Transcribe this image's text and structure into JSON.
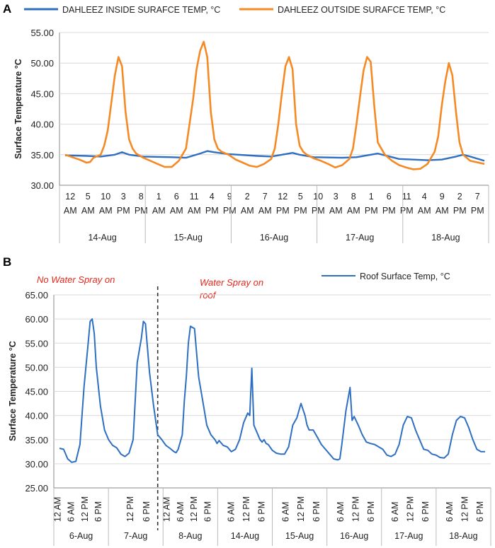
{
  "chart_data": [
    {
      "type": "line",
      "panel_label": "A",
      "ylabel": "Surface Temperature °C",
      "ylim": [
        30,
        55
      ],
      "yticks": [
        "30.00",
        "35.00",
        "40.00",
        "45.00",
        "50.00",
        "55.00"
      ],
      "x_time_labels": [
        {
          "top": "12",
          "bot": "AM"
        },
        {
          "top": "5",
          "bot": "AM"
        },
        {
          "top": "10",
          "bot": "AM"
        },
        {
          "top": "3",
          "bot": "PM"
        },
        {
          "top": "8",
          "bot": "PM"
        },
        {
          "top": "1",
          "bot": "AM"
        },
        {
          "top": "6",
          "bot": "AM"
        },
        {
          "top": "11",
          "bot": "AM"
        },
        {
          "top": "4",
          "bot": "PM"
        },
        {
          "top": "9",
          "bot": "PM"
        },
        {
          "top": "2",
          "bot": "AM"
        },
        {
          "top": "7",
          "bot": "AM"
        },
        {
          "top": "12",
          "bot": "PM"
        },
        {
          "top": "5",
          "bot": "PM"
        },
        {
          "top": "10",
          "bot": "PM"
        },
        {
          "top": "3",
          "bot": "AM"
        },
        {
          "top": "8",
          "bot": "AM"
        },
        {
          "top": "1",
          "bot": "PM"
        },
        {
          "top": "6",
          "bot": "PM"
        },
        {
          "top": "11",
          "bot": "PM"
        },
        {
          "top": "4",
          "bot": "AM"
        },
        {
          "top": "9",
          "bot": "AM"
        },
        {
          "top": "2",
          "bot": "PM"
        },
        {
          "top": "7",
          "bot": "PM"
        }
      ],
      "day_labels": [
        "14-Aug",
        "15-Aug",
        "16-Aug",
        "17-Aug",
        "18-Aug"
      ],
      "series": [
        {
          "name": "DAHLEEZ INSIDE SURAFCE TEMP, °C",
          "color": "#2e6fc2",
          "points": [
            [
              0,
              34.9
            ],
            [
              6,
              34.8
            ],
            [
              10,
              34.7
            ],
            [
              14,
              35.0
            ],
            [
              16,
              35.4
            ],
            [
              18,
              35.0
            ],
            [
              22,
              34.7
            ],
            [
              30,
              34.6
            ],
            [
              34,
              34.5
            ],
            [
              38,
              35.2
            ],
            [
              40,
              35.6
            ],
            [
              42,
              35.4
            ],
            [
              46,
              35.1
            ],
            [
              54,
              34.8
            ],
            [
              58,
              34.7
            ],
            [
              62,
              35.1
            ],
            [
              64,
              35.3
            ],
            [
              66,
              35.0
            ],
            [
              70,
              34.6
            ],
            [
              78,
              34.5
            ],
            [
              82,
              34.6
            ],
            [
              86,
              35.0
            ],
            [
              88,
              35.2
            ],
            [
              90,
              34.9
            ],
            [
              94,
              34.3
            ],
            [
              102,
              34.1
            ],
            [
              106,
              34.2
            ],
            [
              110,
              34.7
            ],
            [
              112,
              35.0
            ],
            [
              114,
              34.7
            ],
            [
              118,
              34.0
            ]
          ]
        },
        {
          "name": "DAHLEEZ OUTSIDE SURAFCE TEMP, °C",
          "color": "#f58a24",
          "points": [
            [
              0,
              35.0
            ],
            [
              2,
              34.6
            ],
            [
              4,
              34.2
            ],
            [
              6,
              33.7
            ],
            [
              7,
              33.8
            ],
            [
              8,
              34.5
            ],
            [
              10,
              35.0
            ],
            [
              11,
              36.5
            ],
            [
              12,
              39.0
            ],
            [
              13,
              43.5
            ],
            [
              14,
              48.0
            ],
            [
              15,
              51.0
            ],
            [
              16,
              49.5
            ],
            [
              17,
              42.0
            ],
            [
              18,
              37.5
            ],
            [
              19,
              36.0
            ],
            [
              20,
              35.2
            ],
            [
              22,
              34.5
            ],
            [
              24,
              34.0
            ],
            [
              26,
              33.5
            ],
            [
              28,
              33.0
            ],
            [
              30,
              33.0
            ],
            [
              32,
              34.0
            ],
            [
              34,
              36.0
            ],
            [
              36,
              44.0
            ],
            [
              37,
              49.0
            ],
            [
              38,
              52.0
            ],
            [
              39,
              53.5
            ],
            [
              40,
              51.0
            ],
            [
              41,
              42.0
            ],
            [
              42,
              37.5
            ],
            [
              43,
              36.0
            ],
            [
              44,
              35.5
            ],
            [
              46,
              35.0
            ],
            [
              48,
              34.2
            ],
            [
              50,
              33.7
            ],
            [
              52,
              33.2
            ],
            [
              54,
              33.0
            ],
            [
              56,
              33.5
            ],
            [
              58,
              34.3
            ],
            [
              59,
              36.0
            ],
            [
              60,
              40.0
            ],
            [
              61,
              45.0
            ],
            [
              62,
              49.5
            ],
            [
              63,
              51.0
            ],
            [
              64,
              49.0
            ],
            [
              65,
              40.0
            ],
            [
              66,
              36.5
            ],
            [
              67,
              35.5
            ],
            [
              68,
              35.0
            ],
            [
              70,
              34.4
            ],
            [
              72,
              34.0
            ],
            [
              74,
              33.5
            ],
            [
              76,
              32.9
            ],
            [
              78,
              33.3
            ],
            [
              80,
              34.3
            ],
            [
              81,
              36.0
            ],
            [
              82,
              40.0
            ],
            [
              83,
              44.5
            ],
            [
              84,
              48.8
            ],
            [
              85,
              51.0
            ],
            [
              86,
              50.2
            ],
            [
              87,
              43.0
            ],
            [
              88,
              37.0
            ],
            [
              89,
              36.0
            ],
            [
              90,
              35.0
            ],
            [
              92,
              34.0
            ],
            [
              94,
              33.3
            ],
            [
              96,
              32.9
            ],
            [
              98,
              32.6
            ],
            [
              100,
              32.7
            ],
            [
              102,
              33.5
            ],
            [
              104,
              35.5
            ],
            [
              105,
              38.0
            ],
            [
              106,
              43.0
            ],
            [
              107,
              47.0
            ],
            [
              108,
              50.0
            ],
            [
              109,
              48.0
            ],
            [
              110,
              42.0
            ],
            [
              111,
              37.0
            ],
            [
              112,
              35.0
            ],
            [
              114,
              34.0
            ],
            [
              118,
              33.5
            ]
          ]
        }
      ]
    },
    {
      "type": "line",
      "panel_label": "B",
      "ylabel": "Surface Temperature °C",
      "ylim": [
        25,
        65
      ],
      "yticks": [
        "25.00",
        "30.00",
        "35.00",
        "40.00",
        "45.00",
        "50.00",
        "55.00",
        "60.00",
        "65.00"
      ],
      "x_time_labels": [
        "12 AM",
        "6 AM",
        "12 PM",
        "6 PM",
        "12 PM",
        "6 PM",
        "12 AM",
        "6 AM",
        "12 PM",
        "6 PM",
        "6 AM",
        "12 PM",
        "6 PM",
        "6 AM",
        "12 PM",
        "6 PM",
        "6 AM",
        "12 PM",
        "6 PM",
        "6 AM",
        "12 PM",
        "6 PM",
        "6 AM",
        "12 PM",
        "6 PM"
      ],
      "day_labels": [
        "6-Aug",
        "7-Aug",
        "8-Aug",
        "14-Aug",
        "15-Aug",
        "16-Aug",
        "17-Aug",
        "18-Aug"
      ],
      "divider_at": 48,
      "annotation_left": "No Water Spray on",
      "annotation_right": [
        "Water Spray on",
        "roof"
      ],
      "series": [
        {
          "name": "Roof Surface Temp, °C",
          "color": "#2e6fc2",
          "points": [
            [
              0,
              33.2
            ],
            [
              2,
              33.0
            ],
            [
              4,
              31.0
            ],
            [
              6,
              30.3
            ],
            [
              8,
              30.5
            ],
            [
              10,
              34.0
            ],
            [
              12,
              46.0
            ],
            [
              14,
              55.0
            ],
            [
              15,
              59.5
            ],
            [
              16,
              60.0
            ],
            [
              17,
              57.0
            ],
            [
              18,
              50.0
            ],
            [
              20,
              42.0
            ],
            [
              22,
              37.0
            ],
            [
              24,
              35.0
            ],
            [
              26,
              33.8
            ],
            [
              28,
              33.3
            ],
            [
              30,
              32.0
            ],
            [
              32,
              31.5
            ],
            [
              34,
              32.2
            ],
            [
              36,
              35.0
            ],
            [
              37,
              43.0
            ],
            [
              38,
              51.0
            ],
            [
              40,
              56.0
            ],
            [
              41,
              59.5
            ],
            [
              42,
              59.0
            ],
            [
              44,
              49.0
            ],
            [
              46,
              42.0
            ],
            [
              48,
              36.0
            ],
            [
              50,
              35.0
            ],
            [
              52,
              33.8
            ],
            [
              54,
              33.2
            ],
            [
              56,
              32.5
            ],
            [
              57,
              32.3
            ],
            [
              58,
              33.0
            ],
            [
              60,
              36.0
            ],
            [
              61,
              43.0
            ],
            [
              62,
              48.0
            ],
            [
              63,
              55.0
            ],
            [
              64,
              58.5
            ],
            [
              66,
              58.0
            ],
            [
              68,
              48.0
            ],
            [
              70,
              43.0
            ],
            [
              72,
              38.0
            ],
            [
              74,
              36.0
            ],
            [
              76,
              35.0
            ],
            [
              77,
              34.2
            ],
            [
              78,
              34.8
            ],
            [
              80,
              33.8
            ],
            [
              82,
              33.5
            ],
            [
              84,
              32.5
            ],
            [
              86,
              33.0
            ],
            [
              88,
              35.0
            ],
            [
              90,
              38.5
            ],
            [
              92,
              40.5
            ],
            [
              93,
              40.0
            ],
            [
              94,
              49.8
            ],
            [
              95,
              38.0
            ],
            [
              96,
              37.0
            ],
            [
              98,
              35.0
            ],
            [
              99,
              34.5
            ],
            [
              100,
              35.0
            ],
            [
              101,
              34.2
            ],
            [
              102,
              34.0
            ],
            [
              104,
              32.8
            ],
            [
              106,
              32.2
            ],
            [
              108,
              32.0
            ],
            [
              110,
              32.0
            ],
            [
              112,
              33.5
            ],
            [
              114,
              38.0
            ],
            [
              116,
              39.5
            ],
            [
              118,
              42.5
            ],
            [
              120,
              40.0
            ],
            [
              121,
              38.0
            ],
            [
              122,
              37.0
            ],
            [
              124,
              37.0
            ],
            [
              126,
              35.5
            ],
            [
              128,
              34.0
            ],
            [
              130,
              33.0
            ],
            [
              132,
              32.0
            ],
            [
              134,
              31.0
            ],
            [
              136,
              30.8
            ],
            [
              137,
              31.0
            ],
            [
              138,
              34.0
            ],
            [
              140,
              41.0
            ],
            [
              142,
              45.8
            ],
            [
              143,
              39.0
            ],
            [
              144,
              39.8
            ],
            [
              146,
              38.0
            ],
            [
              148,
              36.0
            ],
            [
              150,
              34.5
            ],
            [
              152,
              34.2
            ],
            [
              154,
              34.0
            ],
            [
              156,
              33.5
            ],
            [
              158,
              33.0
            ],
            [
              160,
              31.8
            ],
            [
              162,
              31.5
            ],
            [
              164,
              32.0
            ],
            [
              166,
              34.0
            ],
            [
              168,
              38.0
            ],
            [
              170,
              39.8
            ],
            [
              172,
              39.5
            ],
            [
              174,
              37.0
            ],
            [
              176,
              35.0
            ],
            [
              178,
              33.0
            ],
            [
              180,
              32.8
            ],
            [
              182,
              32.0
            ],
            [
              184,
              31.8
            ],
            [
              186,
              31.3
            ],
            [
              188,
              31.2
            ],
            [
              190,
              32.0
            ],
            [
              192,
              36.0
            ],
            [
              194,
              39.0
            ],
            [
              196,
              39.8
            ],
            [
              198,
              39.5
            ],
            [
              200,
              37.5
            ],
            [
              202,
              35.0
            ],
            [
              204,
              33.0
            ],
            [
              206,
              32.5
            ],
            [
              208,
              32.5
            ]
          ]
        }
      ]
    }
  ]
}
